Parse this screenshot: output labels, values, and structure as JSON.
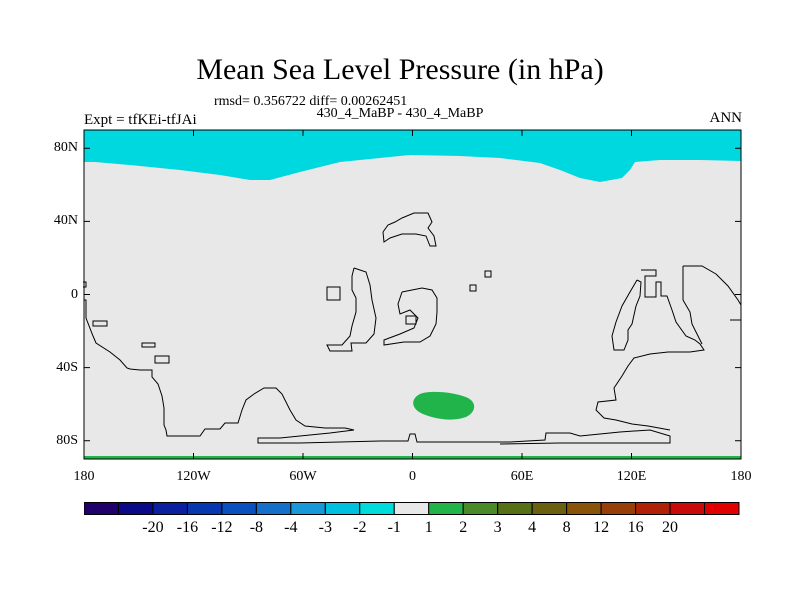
{
  "title": "Mean Sea Level Pressure (in hPa)",
  "stats": "rmsd= 0.356722 diff= 0.00262451",
  "subtitle": "430_4_MaBP - 430_4_MaBP",
  "left_label": "Expt = tfKEi-tfJAi",
  "right_label": "ANN",
  "colors": {
    "background_field": "#e8e8e8",
    "polar_region": "#00d8e0",
    "positive_blob": "#21b44a",
    "coastline": "#000000"
  },
  "map": {
    "projection": "cylindrical equidistant",
    "lon_range": [
      -180,
      180
    ],
    "lat_range": [
      -90,
      90
    ],
    "x_ticks": [
      {
        "lon": -180,
        "label": "180"
      },
      {
        "lon": -120,
        "label": "120W"
      },
      {
        "lon": -60,
        "label": "60W"
      },
      {
        "lon": 0,
        "label": "0"
      },
      {
        "lon": 60,
        "label": "60E"
      },
      {
        "lon": 120,
        "label": "120E"
      },
      {
        "lon": 180,
        "label": "180"
      }
    ],
    "y_ticks": [
      {
        "lat": 80,
        "label": "80N"
      },
      {
        "lat": 40,
        "label": "40N"
      },
      {
        "lat": 0,
        "label": "0"
      },
      {
        "lat": -40,
        "label": "40S"
      },
      {
        "lat": -80,
        "label": "80S"
      }
    ]
  },
  "colorbar": {
    "colors": [
      "#20006a",
      "#0a0a88",
      "#0a20a0",
      "#0838b0",
      "#0a50c0",
      "#1470c8",
      "#1898d8",
      "#00c0e0",
      "#00dcdc",
      "#e8e8e8",
      "#21b44a",
      "#4a8a28",
      "#567018",
      "#6a6010",
      "#8a5408",
      "#983e08",
      "#b02208",
      "#c80a0a",
      "#e00000"
    ],
    "labels": [
      "-20",
      "-16",
      "-12",
      "-8",
      "-4",
      "-3",
      "-2",
      "-1",
      "1",
      "2",
      "3",
      "4",
      "8",
      "12",
      "16",
      "20"
    ]
  }
}
